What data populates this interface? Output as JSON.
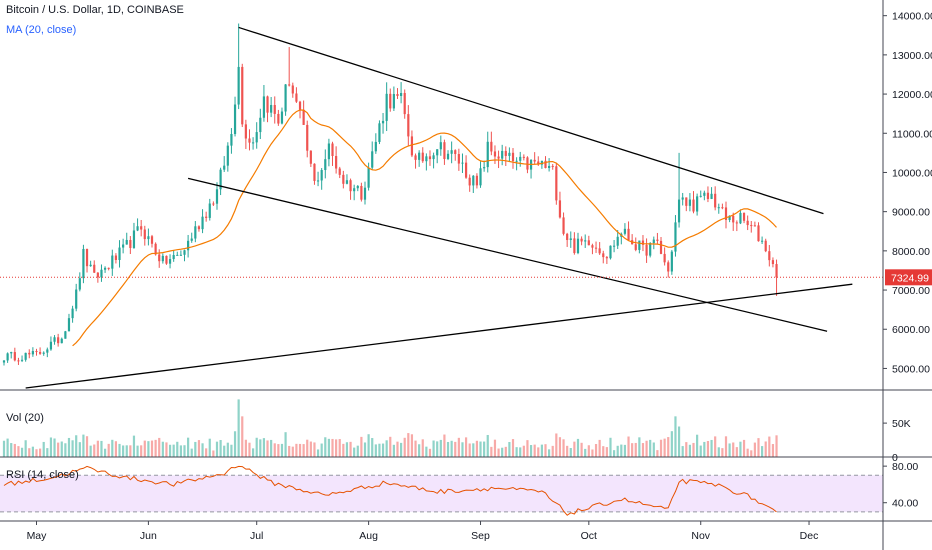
{
  "header": {
    "symbol_title": "Bitcoin / U.S. Dollar, 1D, COINBASE",
    "ma_label": "MA (20, close)",
    "vol_label": "Vol (20)",
    "rsi_label": "RSI (14, close)"
  },
  "colors": {
    "up": "#26a69a",
    "down": "#ef5350",
    "up_vol": "#8fd3c8",
    "down_vol": "#f7a9a7",
    "ma": "#f57c00",
    "rsi_line": "#e65100",
    "rsi_band": "#f3e5fd",
    "trend": "#000000",
    "price_line": "#e53935",
    "grid_text": "#131722"
  },
  "chart_data": {
    "type": "candlestick",
    "price_axis": {
      "ticks": [
        "14000.00",
        "13000.00",
        "12000.00",
        "11000.00",
        "10000.00",
        "9000.00",
        "8000.00",
        "7000.00",
        "6000.00",
        "5000.00"
      ],
      "tick_values": [
        14000,
        13000,
        12000,
        11000,
        10000,
        9000,
        8000,
        7000,
        6000,
        5000
      ],
      "range": [
        4450,
        14400
      ],
      "last_price": 7324.99,
      "last_price_label": "7324.99"
    },
    "volume_axis": {
      "ticks": [
        "50K",
        "0"
      ],
      "tick_values": [
        50000,
        0
      ],
      "range": [
        0,
        90000
      ]
    },
    "rsi_axis": {
      "ticks": [
        "80.00",
        "40.00"
      ],
      "tick_values": [
        80,
        40
      ],
      "range": [
        20,
        90
      ],
      "band": [
        30,
        70
      ]
    },
    "time_axis": {
      "start": "2019-04-22",
      "end": "2019-11-22",
      "labels": [
        {
          "label": "May",
          "date": "2019-05-01"
        },
        {
          "label": "Jun",
          "date": "2019-06-01"
        },
        {
          "label": "Jul",
          "date": "2019-07-01"
        },
        {
          "label": "Aug",
          "date": "2019-08-01"
        },
        {
          "label": "Sep",
          "date": "2019-09-01"
        },
        {
          "label": "Oct",
          "date": "2019-10-01"
        },
        {
          "label": "Nov",
          "date": "2019-11-01"
        },
        {
          "label": "Dec",
          "date": "2019-12-01"
        }
      ]
    },
    "close_anchors": [
      [
        "2019-04-22",
        5300
      ],
      [
        "2019-05-01",
        5350
      ],
      [
        "2019-05-08",
        5800
      ],
      [
        "2019-05-12",
        6900
      ],
      [
        "2019-05-14",
        7900
      ],
      [
        "2019-05-17",
        7300
      ],
      [
        "2019-05-25",
        8000
      ],
      [
        "2019-05-30",
        8600
      ],
      [
        "2019-06-05",
        7700
      ],
      [
        "2019-06-10",
        7900
      ],
      [
        "2019-06-15",
        8700
      ],
      [
        "2019-06-20",
        9500
      ],
      [
        "2019-06-24",
        11000
      ],
      [
        "2019-06-26",
        12900
      ],
      [
        "2019-06-27",
        11200
      ],
      [
        "2019-06-30",
        10800
      ],
      [
        "2019-07-03",
        11900
      ],
      [
        "2019-07-07",
        11300
      ],
      [
        "2019-07-10",
        12400
      ],
      [
        "2019-07-13",
        11400
      ],
      [
        "2019-07-17",
        9700
      ],
      [
        "2019-07-21",
        10600
      ],
      [
        "2019-07-25",
        9800
      ],
      [
        "2019-07-30",
        9500
      ],
      [
        "2019-08-03",
        10800
      ],
      [
        "2019-08-06",
        11900
      ],
      [
        "2019-08-10",
        11800
      ],
      [
        "2019-08-14",
        10200
      ],
      [
        "2019-08-20",
        10700
      ],
      [
        "2019-08-26",
        10300
      ],
      [
        "2019-08-31",
        9600
      ],
      [
        "2019-09-03",
        10600
      ],
      [
        "2019-09-07",
        10400
      ],
      [
        "2019-09-12",
        10200
      ],
      [
        "2019-09-18",
        10200
      ],
      [
        "2019-09-21",
        10000
      ],
      [
        "2019-09-24",
        8500
      ],
      [
        "2019-09-27",
        8100
      ],
      [
        "2019-10-01",
        8300
      ],
      [
        "2019-10-06",
        7900
      ],
      [
        "2019-10-10",
        8500
      ],
      [
        "2019-10-16",
        8000
      ],
      [
        "2019-10-20",
        8200
      ],
      [
        "2019-10-23",
        7450
      ],
      [
        "2019-10-25",
        8700
      ],
      [
        "2019-10-26",
        9250
      ],
      [
        "2019-10-30",
        9200
      ],
      [
        "2019-11-04",
        9400
      ],
      [
        "2019-11-08",
        8800
      ],
      [
        "2019-11-12",
        8800
      ],
      [
        "2019-11-16",
        8500
      ],
      [
        "2019-11-19",
        8100
      ],
      [
        "2019-11-22",
        7325
      ]
    ],
    "notable_highs": [
      [
        "2019-06-26",
        13800
      ],
      [
        "2019-07-10",
        13200
      ],
      [
        "2019-08-06",
        12300
      ],
      [
        "2019-10-26",
        10500
      ]
    ],
    "moving_average": {
      "name": "MA (20, close)",
      "period": 20
    },
    "volume_spikes": [
      [
        "2019-06-26",
        85000
      ],
      [
        "2019-06-27",
        60000
      ],
      [
        "2019-10-25",
        60000
      ],
      [
        "2019-10-26",
        45000
      ],
      [
        "2019-11-22",
        32000
      ]
    ],
    "rsi": {
      "anchors": [
        [
          "2019-04-22",
          60
        ],
        [
          "2019-05-05",
          67
        ],
        [
          "2019-05-15",
          78
        ],
        [
          "2019-05-25",
          68
        ],
        [
          "2019-06-08",
          60
        ],
        [
          "2019-06-22",
          72
        ],
        [
          "2019-06-26",
          82
        ],
        [
          "2019-07-05",
          62
        ],
        [
          "2019-07-20",
          48
        ],
        [
          "2019-08-06",
          62
        ],
        [
          "2019-08-20",
          52
        ],
        [
          "2019-09-05",
          56
        ],
        [
          "2019-09-18",
          52
        ],
        [
          "2019-09-25",
          28
        ],
        [
          "2019-10-01",
          34
        ],
        [
          "2019-10-10",
          44
        ],
        [
          "2019-10-23",
          32
        ],
        [
          "2019-10-26",
          64
        ],
        [
          "2019-11-05",
          60
        ],
        [
          "2019-11-15",
          46
        ],
        [
          "2019-11-22",
          28
        ]
      ]
    },
    "trend_lines": [
      {
        "name": "upper-channel",
        "points": [
          [
            "2019-06-26",
            13700
          ],
          [
            "2019-12-05",
            8950
          ]
        ]
      },
      {
        "name": "lower-channel",
        "points": [
          [
            "2019-06-12",
            9850
          ],
          [
            "2019-12-06",
            5950
          ]
        ]
      },
      {
        "name": "rising-support",
        "points": [
          [
            "2019-04-28",
            4500
          ],
          [
            "2019-12-13",
            7150
          ]
        ]
      }
    ]
  }
}
